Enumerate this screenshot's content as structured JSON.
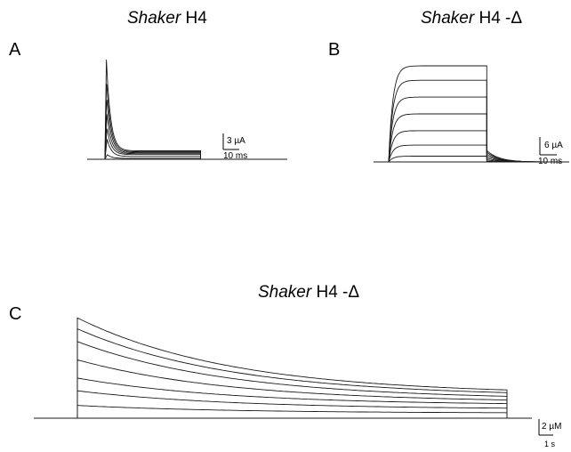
{
  "panels": {
    "A": {
      "letter": "A",
      "title_italic": "Shaker",
      "title_rest": " H4",
      "scale_y_label": "3 µA",
      "scale_x_label": "10 ms"
    },
    "B": {
      "letter": "B",
      "title_italic": "Shaker",
      "title_rest": " H4 -Δ",
      "scale_y_label": "6 µA",
      "scale_x_label": "10 ms"
    },
    "C": {
      "letter": "C",
      "title_italic": "Shaker",
      "title_rest": " H4 -Δ",
      "scale_y_label": "2 µM",
      "scale_x_label": "1 s"
    }
  },
  "chart_data": [
    {
      "type": "line",
      "panel": "A",
      "title": "Shaker H4",
      "xlabel": "",
      "ylabel": "",
      "scale_bar": {
        "y_value": 3,
        "y_unit": "µA",
        "x_value": 10,
        "x_unit": "ms"
      },
      "pulse_start_ms": 0,
      "pulse_end_ms": 50,
      "series_peaks_uA": [
        0.5,
        2.2,
        3.4,
        4.9,
        6.7,
        8.6,
        10.8
      ],
      "series_steady_uA": [
        0.1,
        0.3,
        0.5,
        0.6,
        0.7,
        0.8,
        0.9
      ]
    },
    {
      "type": "line",
      "panel": "B",
      "title": "Shaker H4 -Δ",
      "xlabel": "",
      "ylabel": "",
      "scale_bar": {
        "y_value": 6,
        "y_unit": "µA",
        "x_value": 10,
        "x_unit": "ms"
      },
      "pulse_start_ms": 0,
      "pulse_end_ms": 45,
      "series_steady_uA": [
        1.2,
        3.5,
        6.5,
        10.0,
        13.5,
        17.0,
        20.0
      ]
    },
    {
      "type": "line",
      "panel": "C",
      "title": "Shaker H4 -Δ",
      "xlabel": "",
      "ylabel": "",
      "scale_bar": {
        "y_value": 2,
        "y_unit": "µM",
        "x_value": 1,
        "x_unit": "s"
      },
      "pulse_start_s": 0,
      "pulse_end_s": 14.4,
      "series_peak_uM": [
        0.7,
        1.5,
        2.2,
        3.2,
        4.2,
        4.9,
        5.5
      ],
      "series_end_uM": [
        0.3,
        0.55,
        0.8,
        1.0,
        1.2,
        1.4,
        1.55
      ]
    }
  ]
}
